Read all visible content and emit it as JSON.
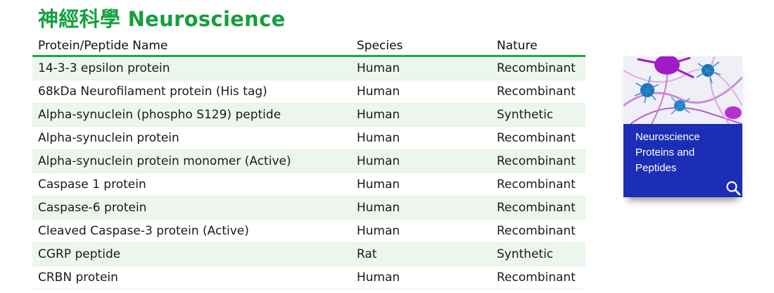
{
  "title": "神經科學 Neuroscience",
  "table": {
    "headers": [
      "Protein/Peptide Name",
      "Species",
      "Nature"
    ],
    "rows": [
      {
        "name": "14-3-3 epsilon protein",
        "species": "Human",
        "nature": "Recombinant"
      },
      {
        "name": "68kDa Neurofilament protein (His tag)",
        "species": "Human",
        "nature": "Recombinant"
      },
      {
        "name": "Alpha-synuclein (phospho S129) peptide",
        "species": "Human",
        "nature": "Synthetic"
      },
      {
        "name": "Alpha-synuclein protein",
        "species": "Human",
        "nature": "Recombinant"
      },
      {
        "name": "Alpha-synuclein protein monomer (Active)",
        "species": "Human",
        "nature": "Recombinant"
      },
      {
        "name": "Caspase 1 protein",
        "species": "Human",
        "nature": "Recombinant"
      },
      {
        "name": "Caspase-6 protein",
        "species": "Human",
        "nature": "Recombinant"
      },
      {
        "name": "Cleaved Caspase-3 protein (Active)",
        "species": "Human",
        "nature": "Recombinant"
      },
      {
        "name": "CGRP peptide",
        "species": "Rat",
        "nature": "Synthetic"
      },
      {
        "name": "CRBN protein",
        "species": "Human",
        "nature": "Recombinant"
      }
    ]
  },
  "brochure": {
    "lines": [
      "Neuroscience",
      "Proteins and",
      "Peptides"
    ],
    "icon": "magnifier-icon"
  },
  "colors": {
    "accent": "#14a03c",
    "row_stripe": "#edf6ec",
    "cover": "#1c2eb4"
  }
}
